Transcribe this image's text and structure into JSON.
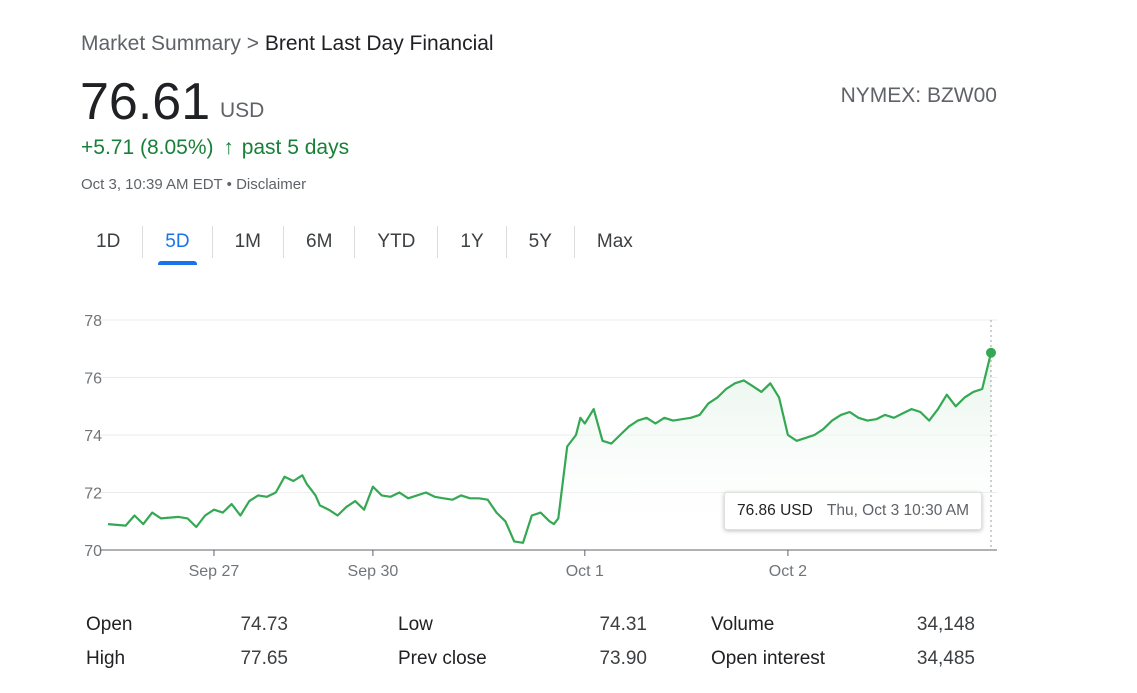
{
  "breadcrumb": {
    "root": "Market Summary",
    "separator": ">",
    "current": "Brent Last Day Financial"
  },
  "quote": {
    "price": "76.61",
    "currency": "USD",
    "exchange": "NYMEX: BZW00",
    "change": "+5.71 (8.05%)",
    "change_arrow": "↑",
    "change_period": "past 5 days",
    "timestamp": "Oct 3, 10:39 AM EDT",
    "bullet": "•",
    "disclaimer": "Disclaimer"
  },
  "tabs": [
    {
      "label": "1D",
      "active": false
    },
    {
      "label": "5D",
      "active": true
    },
    {
      "label": "1M",
      "active": false
    },
    {
      "label": "6M",
      "active": false
    },
    {
      "label": "YTD",
      "active": false
    },
    {
      "label": "1Y",
      "active": false
    },
    {
      "label": "5Y",
      "active": false
    },
    {
      "label": "Max",
      "active": false
    }
  ],
  "tooltip": {
    "value": "76.86 USD",
    "when": "Thu, Oct 3 10:30 AM"
  },
  "colors": {
    "line": "#34a853",
    "fill": "#e6f4ea",
    "accent": "#1a73e8",
    "up": "#188038"
  },
  "stats": {
    "left": [
      {
        "label": "Open",
        "value": "74.73"
      },
      {
        "label": "High",
        "value": "77.65"
      }
    ],
    "middle": [
      {
        "label": "Low",
        "value": "74.31"
      },
      {
        "label": "Prev close",
        "value": "73.90"
      }
    ],
    "right": [
      {
        "label": "Volume",
        "value": "34,148"
      },
      {
        "label": "Open interest",
        "value": "34,485"
      }
    ]
  },
  "chart_data": {
    "type": "area",
    "ylim": [
      70,
      78
    ],
    "y_ticks": [
      70,
      72,
      74,
      76,
      78
    ],
    "x_tick_labels": [
      "Sep 27",
      "Sep 30",
      "Oct 1",
      "Oct 2"
    ],
    "x_tick_positions": [
      0.12,
      0.3,
      0.54,
      0.77
    ],
    "grid": true,
    "highlight": {
      "x": 1.0,
      "y": 76.86
    },
    "x": [
      0.0,
      0.02,
      0.03,
      0.04,
      0.05,
      0.06,
      0.08,
      0.09,
      0.1,
      0.11,
      0.12,
      0.13,
      0.14,
      0.15,
      0.16,
      0.17,
      0.18,
      0.19,
      0.2,
      0.21,
      0.22,
      0.225,
      0.23,
      0.235,
      0.24,
      0.25,
      0.26,
      0.27,
      0.28,
      0.29,
      0.3,
      0.31,
      0.32,
      0.33,
      0.34,
      0.35,
      0.36,
      0.37,
      0.38,
      0.39,
      0.4,
      0.41,
      0.42,
      0.43,
      0.44,
      0.45,
      0.46,
      0.47,
      0.48,
      0.49,
      0.5,
      0.505,
      0.51,
      0.52,
      0.53,
      0.535,
      0.54,
      0.55,
      0.56,
      0.57,
      0.58,
      0.59,
      0.6,
      0.61,
      0.62,
      0.63,
      0.64,
      0.65,
      0.66,
      0.67,
      0.68,
      0.69,
      0.7,
      0.71,
      0.72,
      0.73,
      0.74,
      0.75,
      0.76,
      0.77,
      0.78,
      0.79,
      0.8,
      0.81,
      0.82,
      0.83,
      0.84,
      0.85,
      0.86,
      0.87,
      0.88,
      0.89,
      0.9,
      0.91,
      0.92,
      0.93,
      0.94,
      0.95,
      0.96,
      0.97,
      0.98,
      0.99,
      1.0
    ],
    "y": [
      70.9,
      70.85,
      71.2,
      70.9,
      71.3,
      71.1,
      71.15,
      71.1,
      70.8,
      71.2,
      71.4,
      71.3,
      71.6,
      71.2,
      71.7,
      71.9,
      71.85,
      72.0,
      72.55,
      72.4,
      72.6,
      72.3,
      72.1,
      71.9,
      71.55,
      71.4,
      71.2,
      71.5,
      71.7,
      71.4,
      72.2,
      71.9,
      71.85,
      72.0,
      71.8,
      71.9,
      72.0,
      71.85,
      71.8,
      71.75,
      71.9,
      71.8,
      71.8,
      71.75,
      71.3,
      71.0,
      70.3,
      70.25,
      71.2,
      71.3,
      71.0,
      70.9,
      71.1,
      73.6,
      74.0,
      74.6,
      74.4,
      74.9,
      73.8,
      73.7,
      74.0,
      74.3,
      74.5,
      74.6,
      74.4,
      74.6,
      74.5,
      74.55,
      74.6,
      74.7,
      75.1,
      75.3,
      75.6,
      75.8,
      75.9,
      75.7,
      75.5,
      75.8,
      75.3,
      74.0,
      73.8,
      73.9,
      74.0,
      74.2,
      74.5,
      74.7,
      74.8,
      74.6,
      74.5,
      74.55,
      74.7,
      74.6,
      74.75,
      74.9,
      74.8,
      74.5,
      74.9,
      75.4,
      75.0,
      75.3,
      75.5,
      75.6,
      76.86
    ]
  }
}
